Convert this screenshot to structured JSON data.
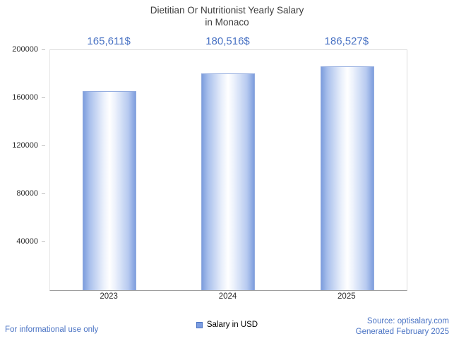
{
  "header": {
    "title_line1": "Dietitian Or Nutritionist Yearly Salary",
    "title_line2": "in Monaco"
  },
  "chart_data": {
    "type": "bar",
    "title": "Dietitian Or Nutritionist Yearly Salary in Monaco",
    "categories": [
      "2023",
      "2024",
      "2025"
    ],
    "values": [
      165611,
      180516,
      186527
    ],
    "value_labels": [
      "165,611$",
      "180,516$",
      "186,527$"
    ],
    "series_name": "Salary in USD",
    "xlabel": "",
    "ylabel": "",
    "ylim": [
      0,
      200000
    ],
    "yticks": [
      40000,
      80000,
      120000,
      160000,
      200000
    ],
    "ytick_labels": [
      "40000",
      "80000",
      "120000",
      "160000",
      "200000"
    ],
    "grid": false,
    "legend_position": "bottom",
    "bar_color_edge": "#7d9ddd",
    "bar_color_center": "#ffffff"
  },
  "legend": {
    "label": "Salary in USD",
    "swatch_color": "#7b9ce0",
    "swatch_border": "#4a73c4"
  },
  "footer": {
    "left": "For informational use only",
    "right_line1": "Source: optisalary.com",
    "right_line2": "Generated February 2025"
  },
  "colors": {
    "accent_blue": "#4a73c4",
    "title_gray": "#3d3d3d",
    "axis_text": "#2b2b2b"
  }
}
